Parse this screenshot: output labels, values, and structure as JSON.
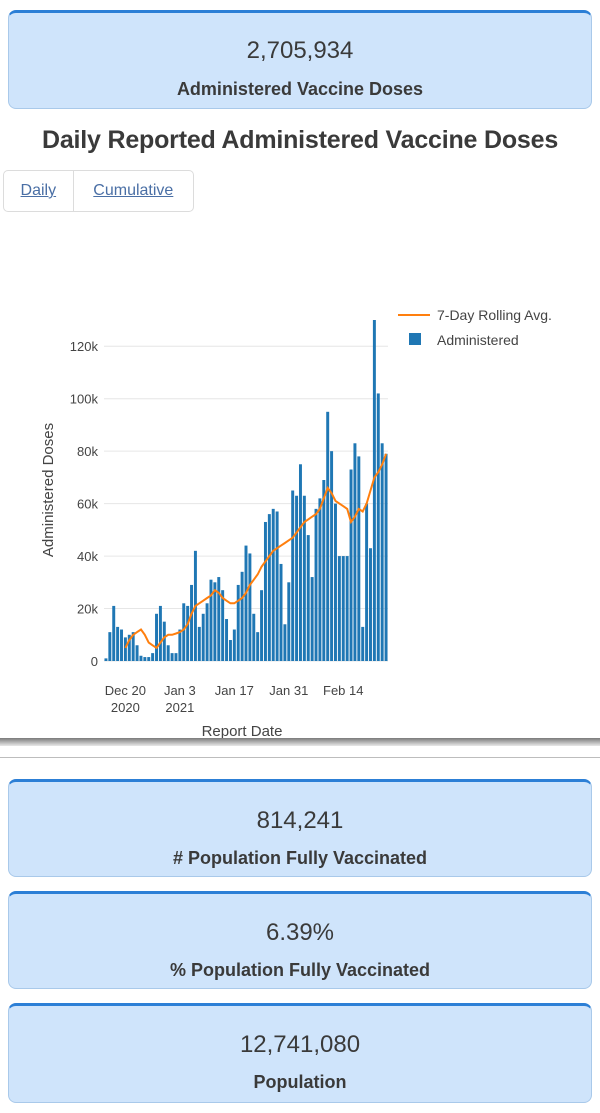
{
  "summary": {
    "doses_value": "2,705,934",
    "doses_label": "Administered Vaccine Doses"
  },
  "chart_section": {
    "title": "Daily Reported Administered Vaccine Doses",
    "tabs": [
      "Daily",
      "Cumulative"
    ]
  },
  "stats": {
    "fully_vaccinated_value": "814,241",
    "fully_vaccinated_label": "# Population Fully Vaccinated",
    "pct_fully_vaccinated_value": "6.39%",
    "pct_fully_vaccinated_label": "% Population Fully Vaccinated",
    "population_value": "12,741,080",
    "population_label": "Population"
  },
  "colors": {
    "bar": "#1f77b4",
    "rolling_avg": "#ff7f0e",
    "card_bg": "#cfe4fb",
    "card_accent": "#2c7fd6"
  },
  "chart_data": {
    "type": "bar",
    "xlabel": "Report Date",
    "ylabel": "Administered Doses",
    "ylim": [
      0,
      130000
    ],
    "yticks": [
      0,
      20000,
      40000,
      60000,
      80000,
      100000,
      120000
    ],
    "ytick_labels": [
      "0",
      "20k",
      "40k",
      "60k",
      "80k",
      "100k",
      "120k"
    ],
    "x_start_date": "2020-12-15",
    "xticks": [
      {
        "day_index": 5,
        "label": [
          "Dec 20",
          "2020"
        ]
      },
      {
        "day_index": 19,
        "label": [
          "Jan 3",
          "2021"
        ]
      },
      {
        "day_index": 33,
        "label": [
          "Jan 17"
        ]
      },
      {
        "day_index": 47,
        "label": [
          "Jan 31"
        ]
      },
      {
        "day_index": 61,
        "label": [
          "Feb 14"
        ]
      }
    ],
    "legend": [
      "7-Day Rolling Avg.",
      "Administered"
    ],
    "legend_position": "top-right",
    "series": [
      {
        "name": "Administered",
        "type": "bar",
        "values": [
          1000,
          11000,
          21000,
          13000,
          12000,
          9000,
          10000,
          11000,
          6000,
          2000,
          1500,
          1500,
          3000,
          18000,
          21000,
          15000,
          6000,
          3000,
          3000,
          12000,
          22000,
          21000,
          29000,
          42000,
          13000,
          18000,
          22000,
          31000,
          30000,
          32000,
          27000,
          16000,
          8000,
          12000,
          29000,
          34000,
          44000,
          41000,
          18000,
          11000,
          27000,
          53000,
          56000,
          58000,
          57000,
          37000,
          14000,
          30000,
          65000,
          63000,
          75000,
          63000,
          48000,
          32000,
          58000,
          62000,
          69000,
          95000,
          80000,
          60000,
          40000,
          40000,
          40000,
          73000,
          83000,
          78000,
          13000,
          60000,
          43000,
          130000,
          102000,
          83000,
          79000
        ]
      },
      {
        "name": "7-Day Rolling Avg.",
        "type": "line",
        "values": [
          null,
          null,
          null,
          null,
          null,
          5000,
          8000,
          10000,
          11000,
          12000,
          10000,
          7000,
          6000,
          5000,
          7000,
          9000,
          10000,
          10000,
          10500,
          11000,
          12000,
          14000,
          18000,
          21000,
          22000,
          23000,
          24000,
          25000,
          27000,
          26000,
          24000,
          23000,
          22000,
          22000,
          23000,
          24000,
          26000,
          29000,
          31000,
          33000,
          36000,
          38000,
          40000,
          42000,
          43000,
          44000,
          45000,
          46000,
          47000,
          49000,
          51000,
          53000,
          54000,
          55000,
          56000,
          58000,
          62000,
          66000,
          64000,
          61000,
          60000,
          59000,
          58000,
          53000,
          55000,
          58000,
          57000,
          60000,
          65000,
          70000,
          72000,
          75000,
          79000
        ]
      }
    ]
  }
}
